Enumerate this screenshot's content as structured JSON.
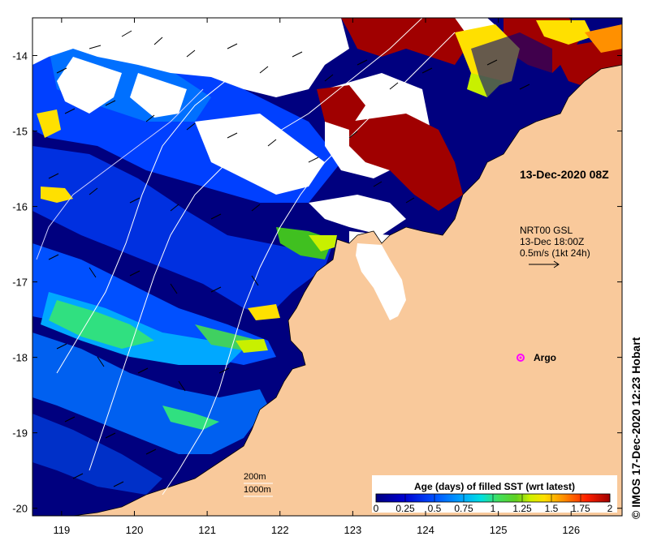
{
  "map": {
    "lat_ticks": [
      "-14",
      "-15",
      "-16",
      "-17",
      "-18",
      "-19",
      "-20"
    ],
    "lon_ticks": [
      "119",
      "120",
      "121",
      "122",
      "123",
      "124",
      "125",
      "126"
    ],
    "lat_range": [
      -20.1,
      -13.5
    ],
    "lon_range": [
      118.6,
      126.7
    ],
    "land_color": "#f9c99b",
    "ocean_no_data_color": "#ffffff"
  },
  "annotations": {
    "sst_time": "13-Dec-2020 08Z",
    "current_source": "NRT00 GSL",
    "current_time": "13-Dec 18:00Z",
    "vector_scale": "0.5m/s (1kt 24h)",
    "argo_label": "Argo",
    "isobath_200": "200m",
    "isobath_1000": "1000m"
  },
  "legend": {
    "title": "Age (days) of filled SST (wrt latest)",
    "tick_labels": [
      "0",
      "0.25",
      "0.5",
      "0.75",
      "1",
      "1.25",
      "1.5",
      "1.75",
      "2"
    ],
    "min": 0,
    "max": 2,
    "colors": [
      "#00007f",
      "#0000c8",
      "#0040ff",
      "#0090ff",
      "#00d8f0",
      "#30e080",
      "#40c020",
      "#c8f000",
      "#ffe000",
      "#ff9000",
      "#ff2000",
      "#a00000"
    ]
  },
  "credit": "IMOS 17-Dec-2020 12:23 Hobart",
  "copyright_symbol": "©"
}
